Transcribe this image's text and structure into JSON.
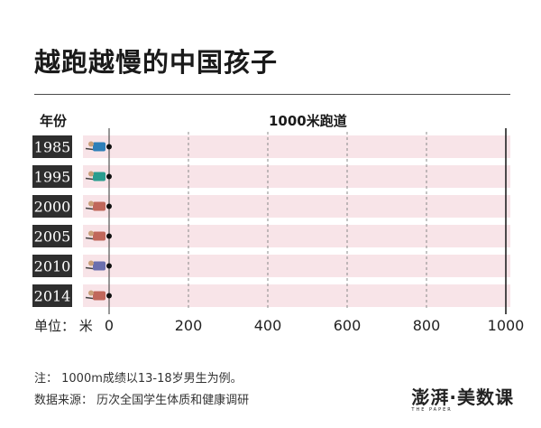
{
  "header": {
    "title": "越跑越慢的中国孩子",
    "col_year": "年份",
    "col_track": "1000米跑道"
  },
  "axis": {
    "unit_label": "单位：  米"
  },
  "footer": {
    "note": "注：  1000m成绩以13-18岁男生为例。",
    "source": "数据来源：  历次全国学生体质和健康调研",
    "brand": "澎湃·美数课",
    "brand_sub": "THE PAPER"
  },
  "colors": {
    "track": "#f8e4e8",
    "year_badge": "#2e2e2e",
    "finish_line": "#222222",
    "gridline": "#888888"
  },
  "chart_data": {
    "type": "bar",
    "categories": [
      "1985",
      "1995",
      "2000",
      "2005",
      "2010",
      "2014"
    ],
    "values": [
      0,
      0,
      0,
      0,
      0,
      0
    ],
    "runner_colors": [
      "#2e7fb8",
      "#2a9d8f",
      "#c0675b",
      "#c0675b",
      "#6b6fae",
      "#c0675b"
    ],
    "xlim": [
      0,
      1000
    ],
    "xticks": [
      0,
      200,
      400,
      600,
      800,
      1000
    ],
    "xlabel": "1000米跑道",
    "ylabel": "年份",
    "unit": "米",
    "grid": true
  }
}
